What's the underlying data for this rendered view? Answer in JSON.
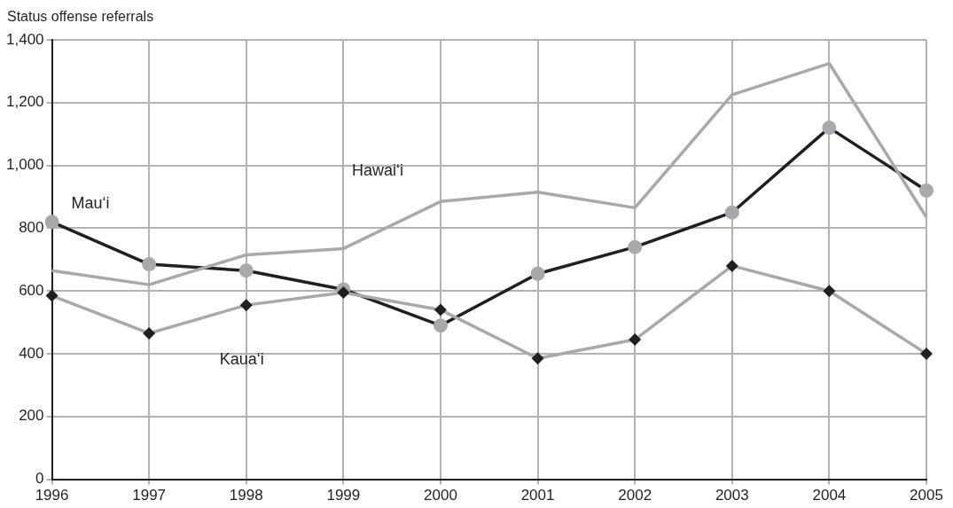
{
  "chart_data": {
    "type": "line",
    "ylabel": "Status offense referrals",
    "categories": [
      "1996",
      "1997",
      "1998",
      "1999",
      "2000",
      "2001",
      "2002",
      "2003",
      "2004",
      "2005"
    ],
    "series": [
      {
        "name": "Mau‘i",
        "color": "#231f20",
        "marker": "circle",
        "values": [
          820,
          685,
          665,
          605,
          490,
          655,
          740,
          850,
          1120,
          920
        ]
      },
      {
        "name": "Hawai‘i",
        "color": "#a7a9ac",
        "marker": "none",
        "values": [
          665,
          620,
          715,
          735,
          885,
          915,
          865,
          1225,
          1325,
          835
        ]
      },
      {
        "name": "Kaua‘i",
        "color": "#a7a9ac",
        "marker": "diamond",
        "values": [
          585,
          465,
          555,
          595,
          540,
          385,
          445,
          680,
          600,
          400
        ]
      }
    ],
    "ylim": [
      0,
      1400
    ],
    "yticks": [
      0,
      {
        "value": 200,
        "label": "200"
      },
      400,
      600,
      800,
      {
        "value": 1000,
        "label": "1,000"
      },
      {
        "value": 1200,
        "label": "1,200"
      },
      {
        "value": 1400,
        "label": "1,400"
      }
    ],
    "grid": true,
    "legend": false,
    "line_style": "solid"
  }
}
